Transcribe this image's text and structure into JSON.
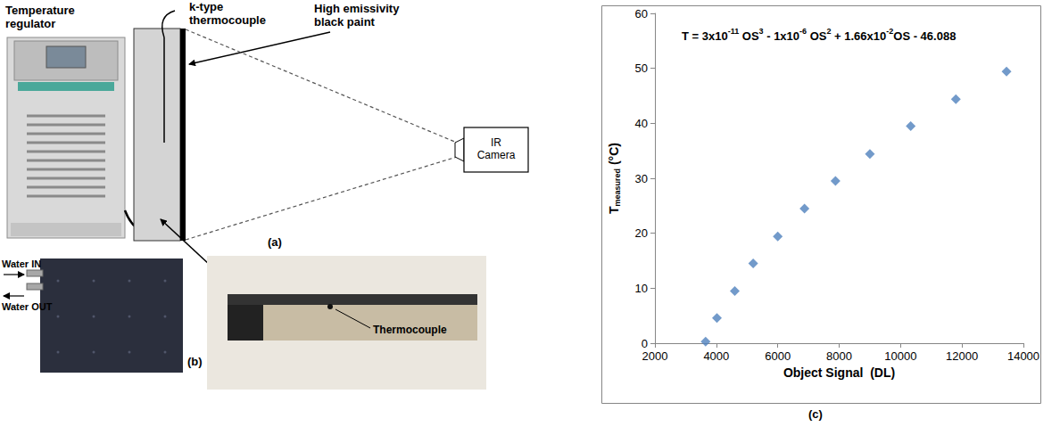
{
  "diagram": {
    "labels": {
      "temperature_regulator": "Temperature regulator",
      "thermocouple": "k-type thermocouple",
      "paint": "High emissivity black paint",
      "camera": "IR Camera",
      "water_in": "Water IN",
      "water_out": "Water OUT",
      "thermocouple_photo": "Thermocouple"
    },
    "panels": {
      "a": "(a)",
      "b": "(b)"
    }
  },
  "chart_data": {
    "type": "scatter",
    "panel": "(c)",
    "annotation": [
      "T = 3x10",
      "-11",
      " OS",
      "3",
      " - 1x10",
      "-6",
      " OS",
      "2",
      " + 1.66x10",
      "-2",
      "OS - 46.088"
    ],
    "xlabel": "Object Signal  (DL)",
    "ylabel": [
      "T",
      "measured",
      " (°C)"
    ],
    "x": [
      3650,
      4020,
      4600,
      5200,
      6000,
      6870,
      7880,
      9000,
      10330,
      11800,
      13450
    ],
    "values": [
      0.3,
      4.6,
      9.5,
      14.5,
      19.4,
      24.5,
      29.5,
      34.4,
      39.5,
      44.4,
      49.4
    ],
    "color": "#4f81bd",
    "marker": "diamond",
    "xlim": [
      2000,
      14000
    ],
    "xticks": [
      2000,
      4000,
      6000,
      8000,
      10000,
      12000,
      14000
    ],
    "ylim": [
      0,
      60
    ],
    "yticks": [
      0,
      10,
      20,
      30,
      40,
      50,
      60
    ],
    "grid": false
  }
}
